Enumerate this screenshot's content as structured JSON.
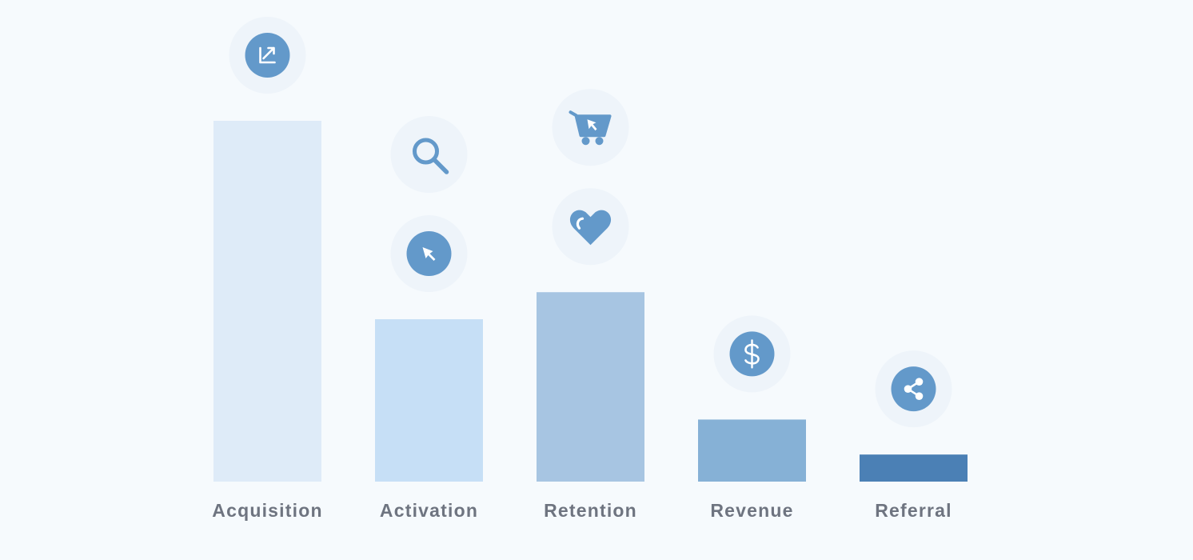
{
  "chart_data": {
    "type": "bar",
    "title": "",
    "xlabel": "",
    "ylabel": "",
    "ylim": [
      0,
      100
    ],
    "grid": false,
    "categories": [
      "Acquisition",
      "Activation",
      "Retention",
      "Revenue",
      "Referral"
    ],
    "values": [
      100,
      45,
      52.5,
      17.2,
      7.5
    ],
    "bar_colors": [
      "#deebf8",
      "#c6dff6",
      "#a7c5e2",
      "#86b1d6",
      "#4b80b5"
    ],
    "icons": [
      [
        "trend-up-icon"
      ],
      [
        "search-icon",
        "cursor-icon"
      ],
      [
        "cart-icon",
        "heart-icon"
      ],
      [
        "dollar-icon"
      ],
      [
        "share-icon"
      ]
    ],
    "icon_color": "#6399ca",
    "icon_halo_color": "#eef4fa",
    "label_color": "#6e7480",
    "background": "#f6fafd"
  }
}
